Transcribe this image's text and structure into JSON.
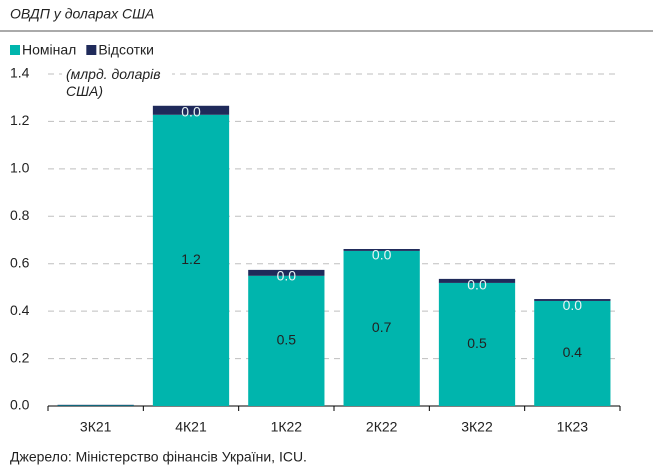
{
  "chart_data": {
    "type": "stacked_bar",
    "title": "ОВДП у доларах США",
    "y_label": "(млрд. доларів США)",
    "source": "Джерело: Міністерство фінансів України, ICU.",
    "categories": [
      "3К21",
      "4К21",
      "1К22",
      "2К22",
      "3К22",
      "1К23"
    ],
    "series": [
      {
        "name": "Номінал",
        "color": "#00b5ad",
        "values": [
          0.002,
          1.228,
          0.549,
          0.654,
          0.519,
          0.443
        ],
        "value_labels": [
          null,
          "1.2",
          "0.5",
          "0.7",
          "0.5",
          "0.4"
        ]
      },
      {
        "name": "Відсотки",
        "color": "#1f2a5a",
        "values": [
          0.003,
          0.038,
          0.025,
          0.008,
          0.017,
          0.008
        ],
        "value_labels": [
          null,
          "0.0",
          "0.0",
          "0.0",
          "0.0",
          "0.0"
        ]
      }
    ],
    "ylim": [
      0,
      1.4
    ],
    "yticks": [
      {
        "value": 0,
        "label": "0.0"
      },
      0.2,
      0.4,
      0.6,
      0.8,
      {
        "value": 1,
        "label": "1.0"
      },
      1.2,
      1.4
    ],
    "grid": true,
    "legend": "top-left"
  }
}
